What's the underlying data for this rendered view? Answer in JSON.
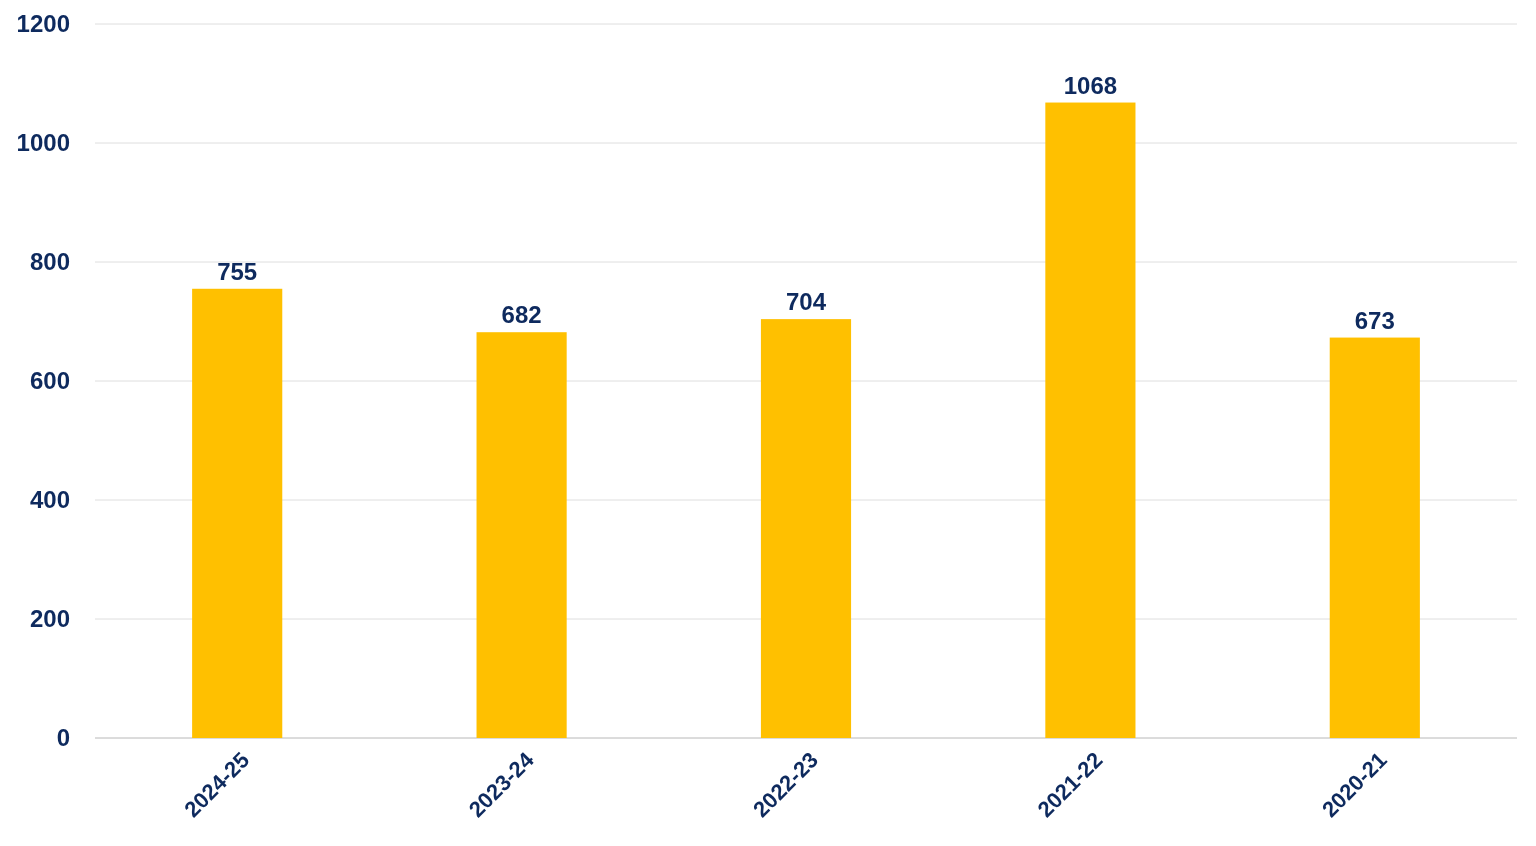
{
  "chart_data": {
    "type": "bar",
    "categories": [
      "2024-25",
      "2023-24",
      "2022-23",
      "2021-22",
      "2020-21"
    ],
    "values": [
      755,
      682,
      704,
      1068,
      673
    ],
    "color": "#ffc000",
    "ylim": [
      0,
      1200
    ],
    "yticks": [
      0,
      200,
      400,
      600,
      800,
      1000,
      1200
    ],
    "grid": "y",
    "data_labels": true
  }
}
